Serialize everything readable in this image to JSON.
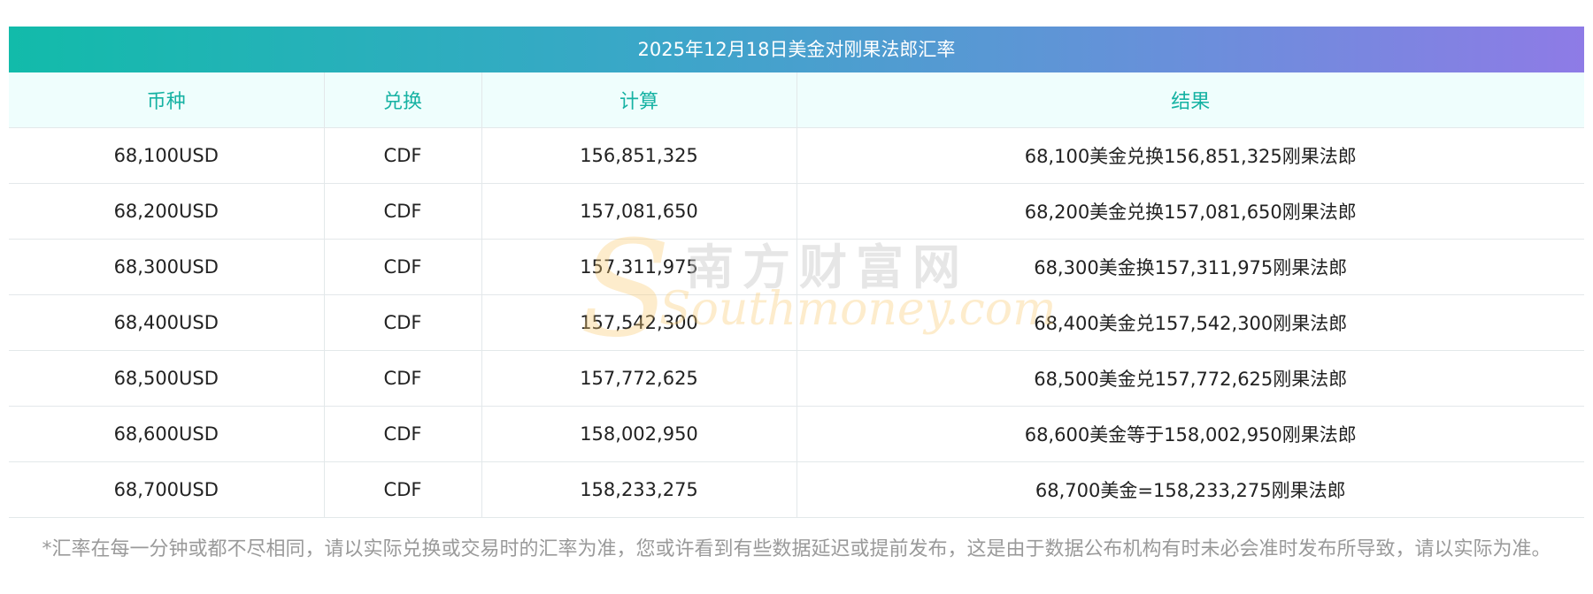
{
  "title": "2025年12月18日美金对刚果法郎汇率",
  "headers": [
    "币种",
    "兑换",
    "计算",
    "结果"
  ],
  "rows": [
    [
      "68,100USD",
      "CDF",
      "156,851,325",
      "68,100美金兑换156,851,325刚果法郎"
    ],
    [
      "68,200USD",
      "CDF",
      "157,081,650",
      "68,200美金兑换157,081,650刚果法郎"
    ],
    [
      "68,300USD",
      "CDF",
      "157,311,975",
      "68,300美金换157,311,975刚果法郎"
    ],
    [
      "68,400USD",
      "CDF",
      "157,542,300",
      "68,400美金兑157,542,300刚果法郎"
    ],
    [
      "68,500USD",
      "CDF",
      "157,772,625",
      "68,500美金兑157,772,625刚果法郎"
    ],
    [
      "68,600USD",
      "CDF",
      "158,002,950",
      "68,600美金等于158,002,950刚果法郎"
    ],
    [
      "68,700USD",
      "CDF",
      "158,233,275",
      "68,700美金=158,233,275刚果法郎"
    ]
  ],
  "note": "*汇率在每一分钟或都不尽相同，请以实际兑换或交易时的汇率为准，您或许看到有些数据延迟或提前发布，这是由于数据公布机构有时未必会准时发布所导致，请以实际为准。",
  "watermark": {
    "cn": "南方财富网",
    "en": "Southmoney.com"
  },
  "colors": {
    "header_text": "#16b2a3",
    "header_bg": "#effefd",
    "gradient_start": "#12bbaa",
    "gradient_end": "#8e7be6"
  }
}
